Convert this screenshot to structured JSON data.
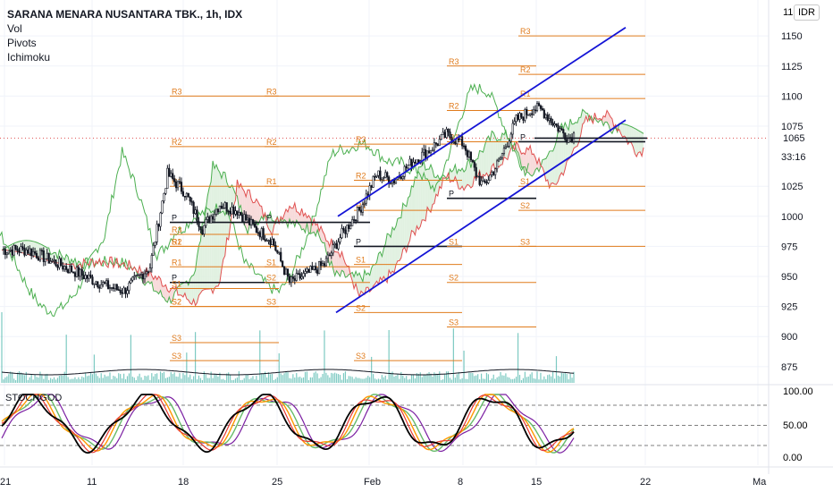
{
  "header": {
    "title": "SARANA MENARA NUSANTARA TBK., 1h, IDX",
    "indicators": [
      "Vol",
      "Pivots",
      "Ichimoku"
    ]
  },
  "price_scale": {
    "currency": "IDR",
    "top_partial": "11",
    "current_price": "1065",
    "countdown": "33:16"
  },
  "oscillator": {
    "name": "STOCHGOD",
    "levels": [
      "100.00",
      "50.00",
      "0.00"
    ]
  },
  "colors": {
    "candle": "#131722",
    "channel": "#1414d6",
    "pivot": "#e07b1c",
    "cloud_red": "#f6d3d3",
    "cloud_green": "#dcefdc",
    "ichimoku_green": "#4caf50",
    "ichimoku_red": "#e05050",
    "volume": "#26a69a",
    "stoch_black": "#000000",
    "stoch_red": "#e53935",
    "stoch_orange": "#ff9800",
    "stoch_green": "#66bb6a",
    "stoch_purple": "#7b1fa2"
  },
  "chart_data": [
    {
      "type": "candlestick",
      "x_ticks": [
        "21",
        "11",
        "18",
        "25",
        "Feb",
        "8",
        "15",
        "22",
        "Ma"
      ],
      "y_ticks": [
        1150,
        1125,
        1100,
        1075,
        1065,
        1025,
        1000,
        975,
        950,
        925,
        900,
        875
      ],
      "ylim": [
        860,
        1165
      ],
      "last_price": 1065,
      "close_anchors": [
        [
          0,
          972
        ],
        [
          15,
          972
        ],
        [
          30,
          962
        ],
        [
          45,
          952
        ],
        [
          60,
          942
        ],
        [
          70,
          938
        ],
        [
          85,
          958
        ],
        [
          95,
          1035
        ],
        [
          105,
          1020
        ],
        [
          115,
          990
        ],
        [
          125,
          1010
        ],
        [
          135,
          1005
        ],
        [
          145,
          990
        ],
        [
          155,
          980
        ],
        [
          165,
          945
        ],
        [
          175,
          952
        ],
        [
          185,
          960
        ],
        [
          195,
          985
        ],
        [
          205,
          1005
        ],
        [
          215,
          1035
        ],
        [
          225,
          1030
        ],
        [
          235,
          1045
        ],
        [
          245,
          1055
        ],
        [
          255,
          1068
        ],
        [
          265,
          1060
        ],
        [
          272,
          1035
        ],
        [
          276,
          1025
        ],
        [
          285,
          1045
        ],
        [
          295,
          1080
        ],
        [
          305,
          1090
        ],
        [
          310,
          1088
        ],
        [
          318,
          1075
        ],
        [
          325,
          1065
        ],
        [
          328,
          1068
        ]
      ],
      "pivot_levels": [
        {
          "labels": [
            "R3",
            "R2",
            "R1",
            "P",
            "S1",
            "S2",
            "S3"
          ],
          "values": [
            1100,
            1058,
            1025,
            995,
            975,
            925,
            880
          ]
        },
        {
          "labels": [
            "R3",
            "R2",
            "R1",
            "P",
            "S1",
            "S2",
            "S3"
          ],
          "values": [
            985,
            975,
            958,
            945,
            940,
            925,
            895
          ]
        },
        {
          "labels": [
            "R3",
            "R2",
            "R1",
            "P",
            "S1",
            "S2",
            "S3"
          ],
          "values": [
            1100,
            1058,
            1025,
            995,
            958,
            945,
            925
          ]
        },
        {
          "labels": [
            "R3",
            "R2",
            "R1",
            "P",
            "S1",
            "S2",
            "S3"
          ],
          "values": [
            1060,
            1030,
            1005,
            975,
            960,
            920,
            880
          ]
        },
        {
          "labels": [
            "R3",
            "R2",
            "R1",
            "P",
            "S1",
            "S2",
            "S3"
          ],
          "values": [
            1125,
            1088,
            1062,
            1015,
            975,
            945,
            908
          ]
        },
        {
          "labels": [
            "R3",
            "R2",
            "R1",
            "P",
            "S1",
            "S2",
            "S3"
          ],
          "values": [
            1150,
            1118,
            1098,
            1062,
            1025,
            1005,
            975
          ]
        }
      ]
    },
    {
      "type": "line",
      "name": "STOCHGOD",
      "ylim": [
        0,
        100
      ],
      "levels": [
        100,
        80,
        50,
        20,
        0
      ]
    }
  ]
}
